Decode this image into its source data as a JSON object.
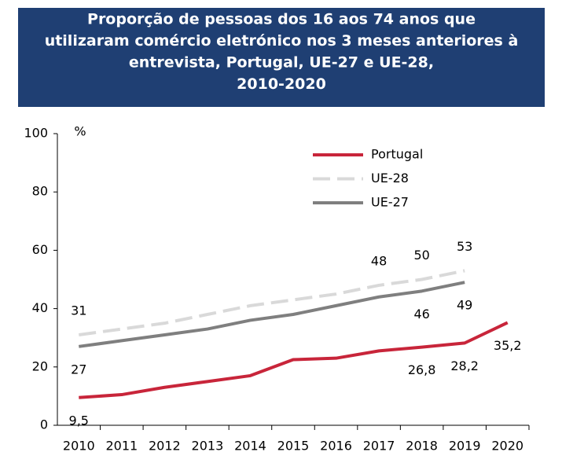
{
  "chart_data": {
    "type": "line",
    "title": [
      "Proporção de pessoas dos 16 aos 74 anos que",
      "utilizaram comércio eletrónico nos 3 meses anteriores à",
      "entrevista, Portugal, UE-27 e UE-28,",
      "2010-2020"
    ],
    "y_label": "%",
    "categories": [
      "2010",
      "2011",
      "2012",
      "2013",
      "2014",
      "2015",
      "2016",
      "2017",
      "2018",
      "2019",
      "2020"
    ],
    "ylim": [
      0,
      100
    ],
    "yticks": [
      0,
      20,
      40,
      60,
      80,
      100
    ],
    "grid": false,
    "series": [
      {
        "name": "Portugal",
        "color": "#c8253a",
        "dash": false,
        "label_position": "below",
        "values": [
          9.5,
          10.5,
          13,
          15,
          17,
          22.5,
          23,
          25.5,
          26.8,
          28.2,
          35.2
        ],
        "value_labels": [
          "9,5",
          null,
          null,
          null,
          null,
          null,
          null,
          null,
          "26,8",
          "28,2",
          "35,2"
        ]
      },
      {
        "name": "UE-28",
        "color": "#d9d9d9",
        "dash": true,
        "label_position": "above",
        "values": [
          31,
          33,
          35,
          38,
          41,
          43,
          45,
          48,
          50,
          53,
          null
        ],
        "value_labels": [
          "31",
          null,
          null,
          null,
          null,
          null,
          null,
          "48",
          "50",
          "53",
          null
        ]
      },
      {
        "name": "UE-27",
        "color": "#7f7f7f",
        "dash": false,
        "label_position": "below",
        "values": [
          27,
          29,
          31,
          33,
          36,
          38,
          41,
          44,
          46,
          49,
          null
        ],
        "value_labels": [
          "27",
          null,
          null,
          null,
          null,
          null,
          null,
          null,
          "46",
          "49",
          null
        ]
      }
    ]
  }
}
